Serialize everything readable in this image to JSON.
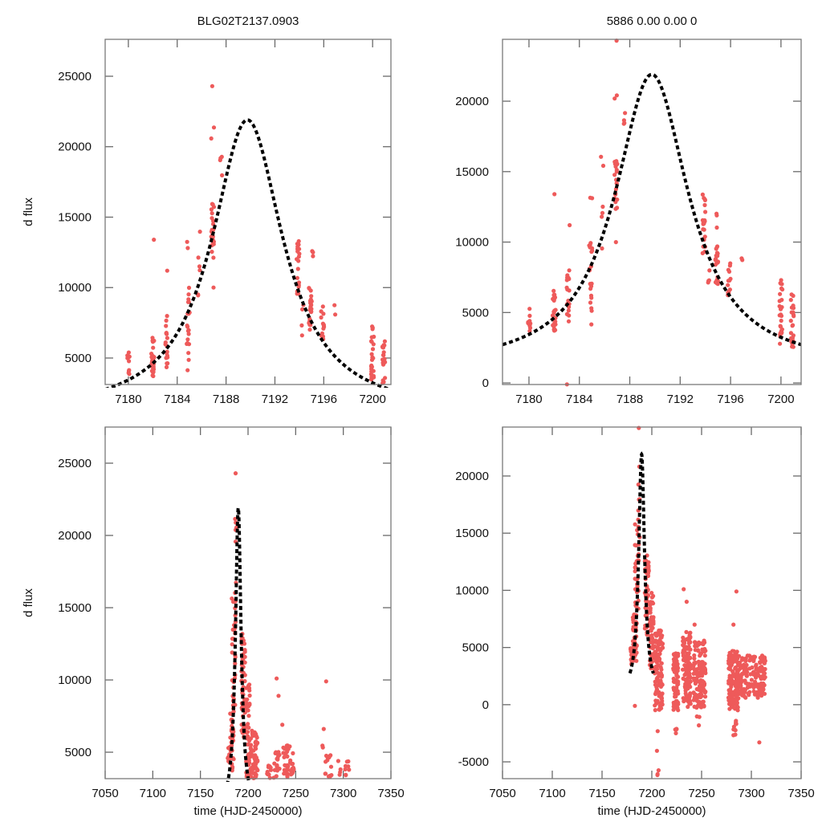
{
  "titles": {
    "left": "BLG02T2137.0903",
    "right": "5886  0.00  0.00  0"
  },
  "colors": {
    "points": "#ee5a5a",
    "model": "#000000",
    "frame": "#7a7a7a"
  },
  "chart_data": [
    {
      "id": "top-left",
      "type": "scatter",
      "title": "BLG02T2137.0903",
      "xlabel": "",
      "ylabel": "d flux",
      "xlim": [
        7178.1,
        7201.5
      ],
      "ylim": [
        3120,
        27620
      ],
      "xticks": [
        7180,
        7184,
        7188,
        7192,
        7196,
        7200
      ],
      "yticks": [
        5000,
        10000,
        15000,
        20000,
        25000
      ],
      "grid": false,
      "model": {
        "t0": 7189.75,
        "peak": 21900,
        "base": 1000,
        "width": 3.55
      },
      "clusters": [
        {
          "t": 7180.0,
          "lo": 3500,
          "hi": 5400,
          "n": 10
        },
        {
          "t": 7182.0,
          "lo": 3700,
          "hi": 6600,
          "n": 28
        },
        {
          "t": 7182.1,
          "lo": 13400,
          "hi": 13400,
          "n": 1
        },
        {
          "t": 7183.1,
          "lo": 4300,
          "hi": 8000,
          "n": 18
        },
        {
          "t": 7183.2,
          "lo": 11200,
          "hi": 11200,
          "n": 1
        },
        {
          "t": 7184.9,
          "lo": 4100,
          "hi": 10000,
          "n": 20
        },
        {
          "t": 7184.9,
          "lo": 12800,
          "hi": 13300,
          "n": 2
        },
        {
          "t": 7185.8,
          "lo": 8500,
          "hi": 16200,
          "n": 6
        },
        {
          "t": 7186.9,
          "lo": 12000,
          "hi": 16000,
          "n": 22
        },
        {
          "t": 7187.0,
          "lo": 10000,
          "hi": 10000,
          "n": 1
        },
        {
          "t": 7186.9,
          "lo": 20000,
          "hi": 21400,
          "n": 2
        },
        {
          "t": 7186.9,
          "lo": 24300,
          "hi": 24300,
          "n": 1
        },
        {
          "t": 7187.6,
          "lo": 16800,
          "hi": 19300,
          "n": 4
        },
        {
          "t": 7193.9,
          "lo": 9200,
          "hi": 13500,
          "n": 20
        },
        {
          "t": 7194.3,
          "lo": 6500,
          "hi": 9000,
          "n": 4
        },
        {
          "t": 7194.9,
          "lo": 7000,
          "hi": 10000,
          "n": 22
        },
        {
          "t": 7195.0,
          "lo": 11000,
          "hi": 12900,
          "n": 3
        },
        {
          "t": 7195.9,
          "lo": 6200,
          "hi": 8700,
          "n": 14
        },
        {
          "t": 7196.9,
          "lo": 7800,
          "hi": 8900,
          "n": 2
        },
        {
          "t": 7200.0,
          "lo": 3300,
          "hi": 7400,
          "n": 26
        },
        {
          "t": 7200.9,
          "lo": 3200,
          "hi": 6300,
          "n": 22
        }
      ]
    },
    {
      "id": "top-right",
      "type": "scatter",
      "title": "5886  0.00  0.00  0",
      "xlabel": "",
      "ylabel": "",
      "xlim": [
        7177.9,
        7201.6
      ],
      "ylim": [
        -110,
        24390
      ],
      "xticks": [
        7180,
        7184,
        7188,
        7192,
        7196,
        7200
      ],
      "yticks": [
        0,
        5000,
        10000,
        15000,
        20000
      ],
      "grid": false,
      "model": {
        "t0": 7189.75,
        "peak": 21900,
        "base": 1000,
        "width": 3.55
      },
      "clusters": [
        {
          "t": 7180.0,
          "lo": 3500,
          "hi": 5400,
          "n": 10
        },
        {
          "t": 7182.0,
          "lo": 3700,
          "hi": 6600,
          "n": 28
        },
        {
          "t": 7182.1,
          "lo": 13400,
          "hi": 13400,
          "n": 1
        },
        {
          "t": 7183.0,
          "lo": -100,
          "hi": -100,
          "n": 1
        },
        {
          "t": 7183.1,
          "lo": 4300,
          "hi": 8000,
          "n": 18
        },
        {
          "t": 7183.2,
          "lo": 11200,
          "hi": 11200,
          "n": 1
        },
        {
          "t": 7184.9,
          "lo": 4100,
          "hi": 10000,
          "n": 20
        },
        {
          "t": 7184.9,
          "lo": 12800,
          "hi": 13300,
          "n": 2
        },
        {
          "t": 7185.8,
          "lo": 8500,
          "hi": 16200,
          "n": 6
        },
        {
          "t": 7186.9,
          "lo": 12000,
          "hi": 16000,
          "n": 22
        },
        {
          "t": 7187.0,
          "lo": 10000,
          "hi": 10000,
          "n": 1
        },
        {
          "t": 7186.9,
          "lo": 20000,
          "hi": 21400,
          "n": 2
        },
        {
          "t": 7186.9,
          "lo": 24300,
          "hi": 24300,
          "n": 1
        },
        {
          "t": 7187.6,
          "lo": 16800,
          "hi": 19300,
          "n": 4
        },
        {
          "t": 7193.9,
          "lo": 9200,
          "hi": 13500,
          "n": 20
        },
        {
          "t": 7194.3,
          "lo": 6500,
          "hi": 9000,
          "n": 4
        },
        {
          "t": 7194.9,
          "lo": 7000,
          "hi": 10000,
          "n": 22
        },
        {
          "t": 7195.0,
          "lo": 11000,
          "hi": 12900,
          "n": 3
        },
        {
          "t": 7195.9,
          "lo": 6200,
          "hi": 8700,
          "n": 14
        },
        {
          "t": 7196.9,
          "lo": 7800,
          "hi": 8900,
          "n": 2
        },
        {
          "t": 7200.0,
          "lo": 2600,
          "hi": 7400,
          "n": 26
        },
        {
          "t": 7200.9,
          "lo": 2500,
          "hi": 6300,
          "n": 22
        }
      ]
    },
    {
      "id": "bottom-left",
      "type": "scatter",
      "title": "",
      "xlabel": "time (HJD-2450000)",
      "ylabel": "d flux",
      "xlim": [
        7050,
        7350
      ],
      "ylim": [
        3170,
        27500
      ],
      "xticks": [
        7050,
        7100,
        7150,
        7200,
        7250,
        7300,
        7350
      ],
      "yticks": [
        5000,
        10000,
        15000,
        20000,
        25000
      ],
      "grid": false,
      "model": {
        "t0": 7189.75,
        "peak": 21900,
        "base": 1000,
        "width": 3.55,
        "trange": [
          7178,
          7201.5
        ]
      },
      "clusters": [
        {
          "t": 7180,
          "lo": 3500,
          "hi": 5400,
          "n": 10,
          "spread": 1.5
        },
        {
          "t": 7183,
          "lo": 3700,
          "hi": 8000,
          "n": 40,
          "spread": 2
        },
        {
          "t": 7185,
          "lo": 8000,
          "hi": 16200,
          "n": 30,
          "spread": 2
        },
        {
          "t": 7186.9,
          "lo": 13000,
          "hi": 21400,
          "n": 10,
          "spread": 1
        },
        {
          "t": 7186.9,
          "lo": 24300,
          "hi": 24300,
          "n": 1,
          "spread": 0
        },
        {
          "t": 7195,
          "lo": 6000,
          "hi": 13500,
          "n": 50,
          "spread": 2
        },
        {
          "t": 7200,
          "lo": 3200,
          "hi": 9800,
          "n": 50,
          "spread": 2
        },
        {
          "t": 7206,
          "lo": 3200,
          "hi": 6500,
          "n": 60,
          "spread": 4
        },
        {
          "t": 7222,
          "lo": 3200,
          "hi": 4200,
          "n": 12,
          "spread": 2
        },
        {
          "t": 7230,
          "lo": 3200,
          "hi": 5200,
          "n": 20,
          "spread": 3
        },
        {
          "t": 7230,
          "lo": 10100,
          "hi": 10100,
          "n": 1,
          "spread": 0
        },
        {
          "t": 7232,
          "lo": 8900,
          "hi": 8900,
          "n": 1,
          "spread": 0
        },
        {
          "t": 7236,
          "lo": 6900,
          "hi": 6900,
          "n": 1,
          "spread": 0
        },
        {
          "t": 7243,
          "lo": 3200,
          "hi": 5500,
          "n": 40,
          "spread": 6
        },
        {
          "t": 7279,
          "lo": 3300,
          "hi": 7000,
          "n": 3,
          "spread": 1
        },
        {
          "t": 7282,
          "lo": 9900,
          "hi": 9900,
          "n": 1,
          "spread": 0
        },
        {
          "t": 7284,
          "lo": 3300,
          "hi": 4800,
          "n": 14,
          "spread": 4
        },
        {
          "t": 7300,
          "lo": 3300,
          "hi": 4400,
          "n": 12,
          "spread": 8
        }
      ]
    },
    {
      "id": "bottom-right",
      "type": "scatter",
      "title": "",
      "xlabel": "time (HJD-2450000)",
      "ylabel": "",
      "xlim": [
        7050,
        7350
      ],
      "ylim": [
        -6470,
        24280
      ],
      "xticks": [
        7050,
        7100,
        7150,
        7200,
        7250,
        7300,
        7350
      ],
      "yticks": [
        -5000,
        0,
        5000,
        10000,
        15000,
        20000
      ],
      "grid": false,
      "model": {
        "t0": 7189.75,
        "peak": 21900,
        "base": 1000,
        "width": 3.55,
        "trange": [
          7178,
          7201.5
        ]
      },
      "clusters": [
        {
          "t": 7180,
          "lo": 3500,
          "hi": 5400,
          "n": 10,
          "spread": 1.5
        },
        {
          "t": 7183,
          "lo": -100,
          "hi": -100,
          "n": 1,
          "spread": 0
        },
        {
          "t": 7183,
          "lo": 3700,
          "hi": 8000,
          "n": 40,
          "spread": 2
        },
        {
          "t": 7185,
          "lo": 8000,
          "hi": 16200,
          "n": 30,
          "spread": 2
        },
        {
          "t": 7186.9,
          "lo": 13000,
          "hi": 21400,
          "n": 10,
          "spread": 1
        },
        {
          "t": 7186.9,
          "lo": 24200,
          "hi": 24200,
          "n": 1,
          "spread": 0
        },
        {
          "t": 7195,
          "lo": 6000,
          "hi": 13500,
          "n": 50,
          "spread": 2
        },
        {
          "t": 7200,
          "lo": 2500,
          "hi": 9800,
          "n": 50,
          "spread": 2
        },
        {
          "t": 7207,
          "lo": -500,
          "hi": 6500,
          "n": 120,
          "spread": 4
        },
        {
          "t": 7206,
          "lo": -6300,
          "hi": -1500,
          "n": 5,
          "spread": 1
        },
        {
          "t": 7224,
          "lo": -500,
          "hi": 4500,
          "n": 90,
          "spread": 2.5
        },
        {
          "t": 7224,
          "lo": -2500,
          "hi": -1000,
          "n": 4,
          "spread": 1
        },
        {
          "t": 7235,
          "lo": -300,
          "hi": 6500,
          "n": 110,
          "spread": 4
        },
        {
          "t": 7232,
          "lo": 10100,
          "hi": 10100,
          "n": 1,
          "spread": 0
        },
        {
          "t": 7235,
          "lo": 9000,
          "hi": 9000,
          "n": 1,
          "spread": 0
        },
        {
          "t": 7243,
          "lo": 7000,
          "hi": 7000,
          "n": 1,
          "spread": 0
        },
        {
          "t": 7248,
          "lo": -300,
          "hi": 5600,
          "n": 140,
          "spread": 6
        },
        {
          "t": 7248,
          "lo": -2000,
          "hi": -1000,
          "n": 3,
          "spread": 3
        },
        {
          "t": 7282,
          "lo": -500,
          "hi": 4800,
          "n": 130,
          "spread": 5
        },
        {
          "t": 7283,
          "lo": -3000,
          "hi": -1000,
          "n": 10,
          "spread": 2
        },
        {
          "t": 7282,
          "lo": 7000,
          "hi": 7000,
          "n": 1,
          "spread": 0
        },
        {
          "t": 7285,
          "lo": 9900,
          "hi": 9900,
          "n": 1,
          "spread": 0
        },
        {
          "t": 7300,
          "lo": 600,
          "hi": 4300,
          "n": 160,
          "spread": 14
        },
        {
          "t": 7308,
          "lo": -3300,
          "hi": -3300,
          "n": 1,
          "spread": 0
        }
      ]
    }
  ]
}
